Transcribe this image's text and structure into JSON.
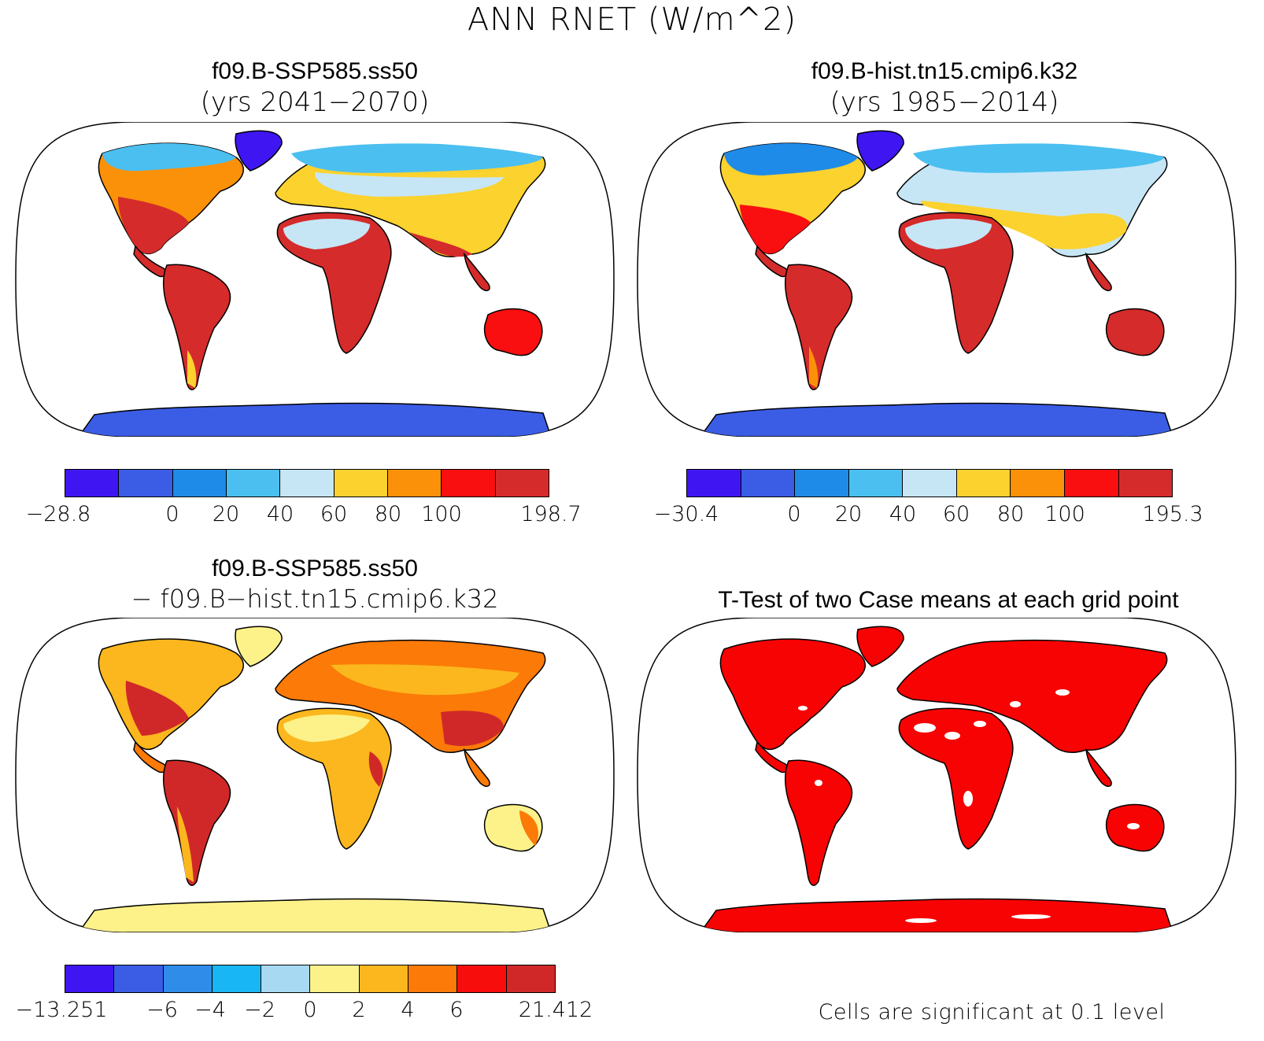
{
  "title": "ANN RNET (W/m^2)",
  "panels": [
    {
      "name": "ssp585",
      "title_line1": "f09.B-SSP585.ss50",
      "title_line2": "(yrs 2041−2070)",
      "colorbar": {
        "colors": [
          "#3f16f2",
          "#3b5de5",
          "#1f8be8",
          "#4bbff0",
          "#c6e6f6",
          "#fbd22e",
          "#fb9108",
          "#f90f0f",
          "#d52b2b"
        ],
        "labels": [
          "−28.8",
          "0",
          "20",
          "40",
          "60",
          "80",
          "100",
          "198.7"
        ]
      }
    },
    {
      "name": "hist",
      "title_line1": "f09.B-hist.tn15.cmip6.k32",
      "title_line2": "(yrs 1985−2014)",
      "colorbar": {
        "colors": [
          "#3f16f2",
          "#3b5de5",
          "#1f8be8",
          "#4bbff0",
          "#c6e6f6",
          "#fbd22e",
          "#fb9108",
          "#f90f0f",
          "#d52b2b"
        ],
        "labels": [
          "−30.4",
          "0",
          "20",
          "40",
          "60",
          "80",
          "100",
          "195.3"
        ]
      }
    },
    {
      "name": "diff",
      "title_line1": "f09.B-SSP585.ss50",
      "title_line2": "− f09.B−hist.tn15.cmip6.k32",
      "colorbar": {
        "colors": [
          "#3f16f2",
          "#3b5de5",
          "#2f8ce8",
          "#18b6f4",
          "#a8d9f2",
          "#fdf28a",
          "#fbb71d",
          "#fb7a08",
          "#f80d0d",
          "#d02828"
        ],
        "labels": [
          "−13.251",
          "−6",
          "−4",
          "−2",
          "0",
          "2",
          "4",
          "6",
          "21.412"
        ]
      }
    },
    {
      "name": "ttest",
      "title": "T-Test of two Case means at each grid point",
      "note": "Cells are significant at 0.1 level",
      "significant_color": "#f80303"
    }
  ]
}
